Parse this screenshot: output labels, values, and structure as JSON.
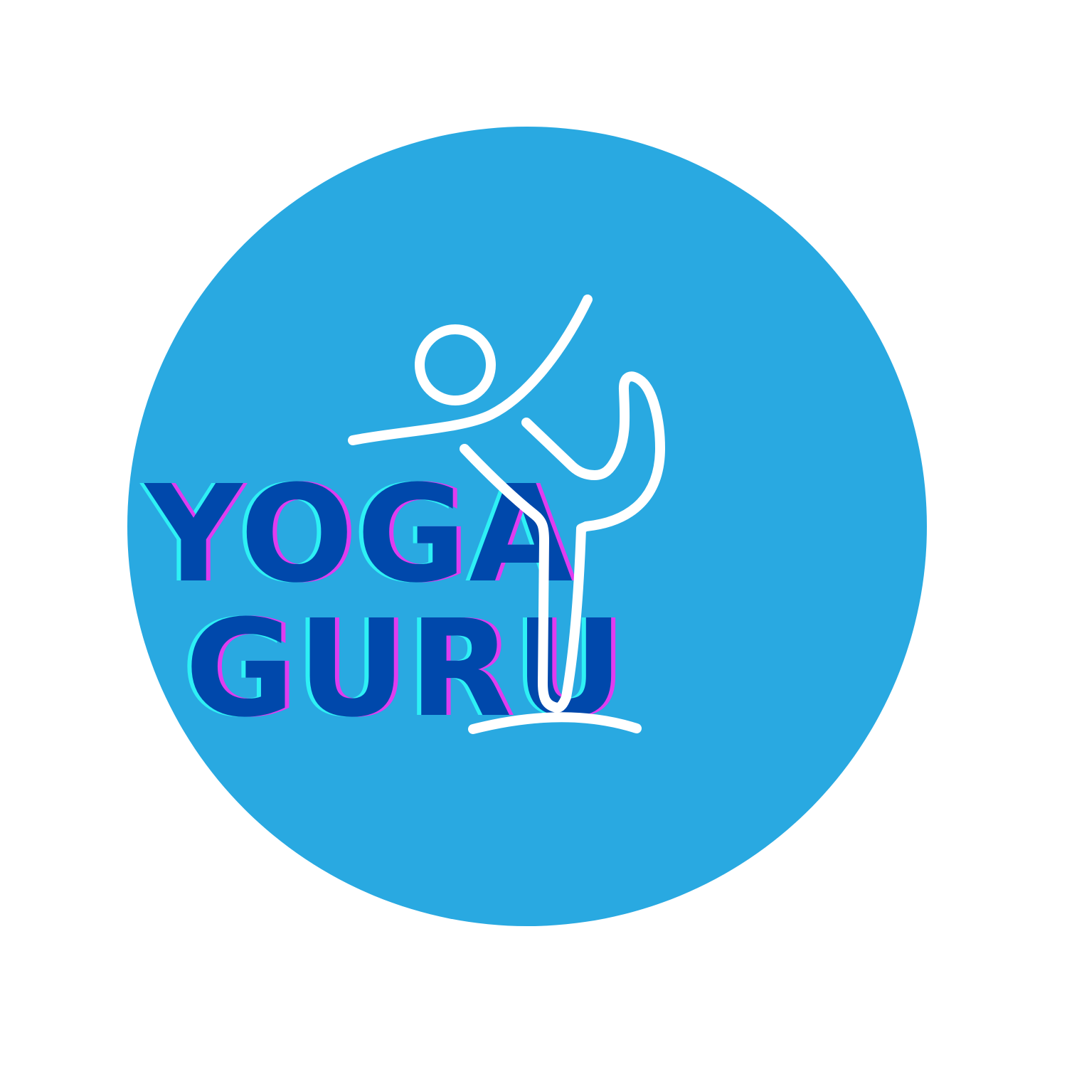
{
  "brand": {
    "line1": "YOGA",
    "line2": "GURU"
  },
  "icon": "yoga-figure-icon",
  "colors": {
    "background": "#ffffff",
    "circle": "#29A9E1",
    "text": "#0048AB",
    "text_shadow_cyan": "#2EF0F5",
    "text_shadow_magenta": "#E03CF0",
    "figure": "#ffffff"
  }
}
